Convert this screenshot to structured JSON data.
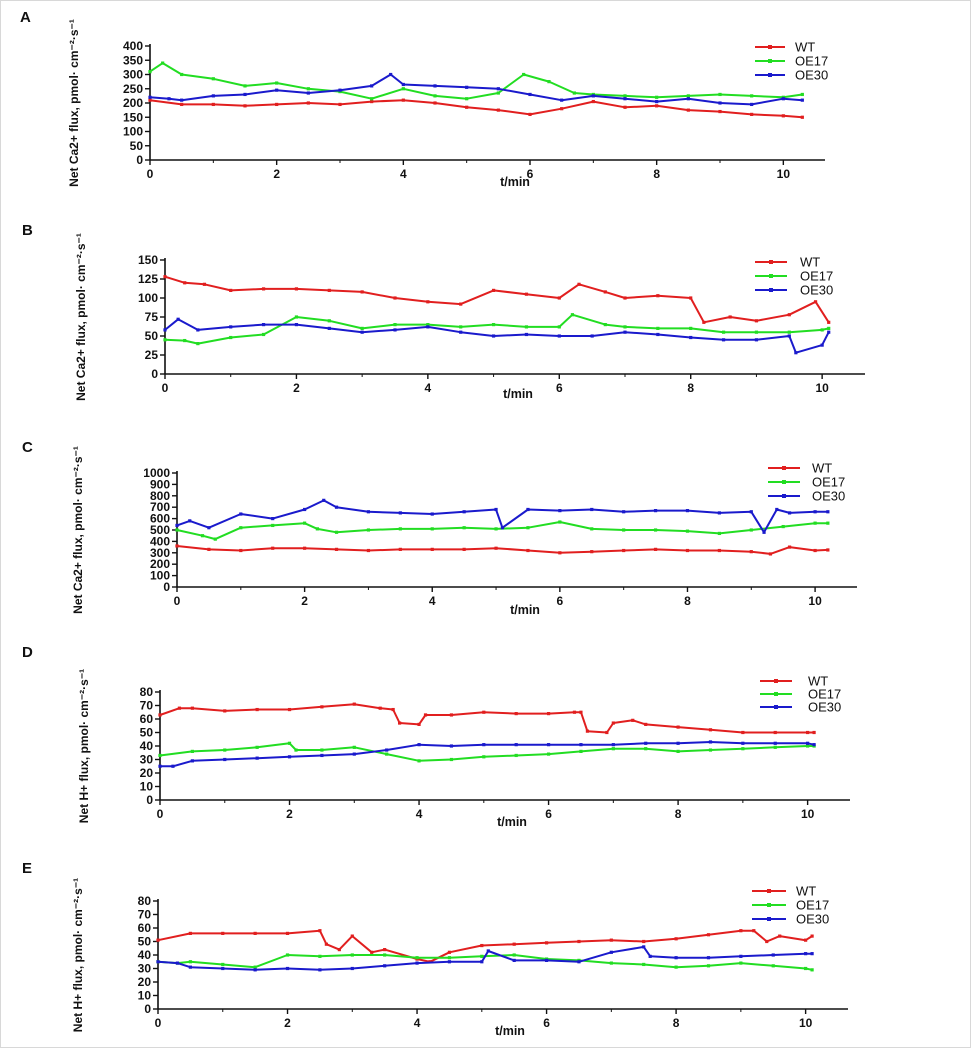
{
  "series_colors": {
    "WT": "#e11f1f",
    "OE17": "#22dd22",
    "OE30": "#1a1acc"
  },
  "chart_data": [
    {
      "panel": "A",
      "type": "line",
      "ylabel": "Net Ca2+ flux, pmol· cm⁻²·s⁻¹",
      "xlabel": "t/min",
      "xlim": [
        0,
        10.5
      ],
      "ylim": [
        0,
        400
      ],
      "xticks": [
        0,
        2,
        4,
        6,
        8,
        10
      ],
      "yticks": [
        0,
        50,
        100,
        150,
        200,
        250,
        300,
        350,
        400
      ],
      "legend": "top-right",
      "series": [
        {
          "name": "WT",
          "x": [
            0,
            0.5,
            1,
            1.5,
            2,
            2.5,
            3,
            3.5,
            4,
            4.5,
            5,
            5.5,
            6,
            6.5,
            7,
            7.5,
            8,
            8.5,
            9,
            9.5,
            10,
            10.3
          ],
          "y": [
            210,
            195,
            195,
            190,
            195,
            200,
            195,
            205,
            210,
            200,
            185,
            175,
            160,
            180,
            205,
            185,
            190,
            175,
            170,
            160,
            155,
            150
          ]
        },
        {
          "name": "OE17",
          "x": [
            0,
            0.2,
            0.5,
            1,
            1.5,
            2,
            2.5,
            3,
            3.5,
            4,
            4.5,
            5,
            5.5,
            5.9,
            6.3,
            6.7,
            7,
            7.5,
            8,
            8.5,
            9,
            9.5,
            10,
            10.3
          ],
          "y": [
            310,
            340,
            300,
            285,
            260,
            270,
            250,
            240,
            215,
            250,
            225,
            215,
            235,
            300,
            275,
            235,
            230,
            225,
            220,
            225,
            230,
            225,
            220,
            230
          ]
        },
        {
          "name": "OE30",
          "x": [
            0,
            0.3,
            0.5,
            1,
            1.5,
            2,
            2.5,
            3,
            3.5,
            3.8,
            4,
            4.5,
            5,
            5.5,
            6,
            6.5,
            7,
            7.5,
            8,
            8.5,
            9,
            9.5,
            10,
            10.3
          ],
          "y": [
            220,
            215,
            210,
            225,
            230,
            245,
            235,
            245,
            260,
            300,
            265,
            260,
            255,
            250,
            230,
            210,
            225,
            215,
            205,
            215,
            200,
            195,
            215,
            210
          ]
        }
      ]
    },
    {
      "panel": "B",
      "type": "line",
      "ylabel": "Net Ca2+ flux, pmol· cm⁻²·s⁻¹",
      "xlabel": "t/min",
      "xlim": [
        0,
        10.5
      ],
      "ylim": [
        0,
        150
      ],
      "xticks": [
        0,
        2,
        4,
        6,
        8,
        10
      ],
      "yticks": [
        0,
        25,
        50,
        75,
        100,
        125,
        150
      ],
      "legend": "top-right",
      "series": [
        {
          "name": "WT",
          "x": [
            0,
            0.3,
            0.6,
            1,
            1.5,
            2,
            2.5,
            3,
            3.5,
            4,
            4.5,
            5,
            5.5,
            6,
            6.3,
            6.7,
            7,
            7.5,
            8,
            8.2,
            8.6,
            9,
            9.5,
            9.9,
            10.1
          ],
          "y": [
            128,
            120,
            118,
            110,
            112,
            112,
            110,
            108,
            100,
            95,
            92,
            110,
            105,
            100,
            118,
            108,
            100,
            103,
            100,
            68,
            75,
            70,
            78,
            95,
            68
          ]
        },
        {
          "name": "OE17",
          "x": [
            0,
            0.3,
            0.5,
            1,
            1.5,
            2,
            2.5,
            3,
            3.5,
            4,
            4.5,
            5,
            5.5,
            6,
            6.2,
            6.7,
            7,
            7.5,
            8,
            8.5,
            9,
            9.5,
            10,
            10.1
          ],
          "y": [
            45,
            44,
            40,
            48,
            52,
            75,
            70,
            60,
            65,
            65,
            62,
            65,
            62,
            62,
            78,
            65,
            62,
            60,
            60,
            55,
            55,
            55,
            58,
            60
          ]
        },
        {
          "name": "OE30",
          "x": [
            0,
            0.2,
            0.5,
            1,
            1.5,
            2,
            2.5,
            3,
            3.5,
            4,
            4.5,
            5,
            5.5,
            6,
            6.5,
            7,
            7.5,
            8,
            8.5,
            9,
            9.5,
            9.6,
            10,
            10.1
          ],
          "y": [
            58,
            72,
            58,
            62,
            65,
            65,
            60,
            55,
            58,
            62,
            55,
            50,
            52,
            50,
            50,
            55,
            52,
            48,
            45,
            45,
            50,
            28,
            38,
            55
          ]
        }
      ]
    },
    {
      "panel": "C",
      "type": "line",
      "ylabel": "Net Ca2+ flux, pmol· cm⁻²·s⁻¹",
      "xlabel": "t/min",
      "xlim": [
        0,
        10.5
      ],
      "ylim": [
        0,
        1000
      ],
      "xticks": [
        0,
        2,
        4,
        6,
        8,
        10
      ],
      "yticks": [
        0,
        100,
        200,
        300,
        400,
        500,
        600,
        700,
        800,
        900,
        1000
      ],
      "legend": "top-right",
      "series": [
        {
          "name": "WT",
          "x": [
            0,
            0.5,
            1,
            1.5,
            2,
            2.5,
            3,
            3.5,
            4,
            4.5,
            5,
            5.5,
            6,
            6.5,
            7,
            7.5,
            8,
            8.5,
            9,
            9.3,
            9.6,
            10,
            10.2
          ],
          "y": [
            360,
            330,
            320,
            340,
            340,
            330,
            320,
            330,
            330,
            330,
            340,
            320,
            300,
            310,
            320,
            330,
            320,
            320,
            310,
            290,
            350,
            320,
            325
          ]
        },
        {
          "name": "OE17",
          "x": [
            0,
            0.4,
            0.6,
            1,
            1.5,
            2,
            2.2,
            2.5,
            3,
            3.5,
            4,
            4.5,
            5,
            5.5,
            6,
            6.5,
            7,
            7.5,
            8,
            8.5,
            9,
            9.5,
            10,
            10.2
          ],
          "y": [
            500,
            450,
            420,
            520,
            540,
            560,
            510,
            480,
            500,
            510,
            510,
            520,
            510,
            520,
            570,
            510,
            500,
            500,
            490,
            470,
            500,
            530,
            560,
            560
          ]
        },
        {
          "name": "OE30",
          "x": [
            0,
            0.2,
            0.5,
            1,
            1.5,
            2,
            2.3,
            2.5,
            3,
            3.5,
            4,
            4.5,
            5,
            5.1,
            5.5,
            6,
            6.5,
            7,
            7.5,
            8,
            8.5,
            9,
            9.2,
            9.4,
            9.6,
            10,
            10.2
          ],
          "y": [
            540,
            580,
            520,
            640,
            600,
            680,
            760,
            700,
            660,
            650,
            640,
            660,
            680,
            520,
            680,
            670,
            680,
            660,
            670,
            670,
            650,
            660,
            480,
            680,
            650,
            660,
            660
          ]
        }
      ]
    },
    {
      "panel": "D",
      "type": "line",
      "ylabel": "Net H+ flux, pmol· cm⁻²·s⁻¹",
      "xlabel": "t/min",
      "xlim": [
        0,
        10.5
      ],
      "ylim": [
        0,
        80
      ],
      "xticks": [
        0,
        2,
        4,
        6,
        8,
        10
      ],
      "yticks": [
        0,
        10,
        20,
        30,
        40,
        50,
        60,
        70,
        80
      ],
      "legend": "top-right",
      "series": [
        {
          "name": "WT",
          "x": [
            0,
            0.3,
            0.5,
            1,
            1.5,
            2,
            2.5,
            3,
            3.4,
            3.6,
            3.7,
            4,
            4.1,
            4.5,
            5,
            5.5,
            6,
            6.4,
            6.5,
            6.6,
            6.9,
            7,
            7.3,
            7.5,
            8,
            8.5,
            9,
            9.5,
            10,
            10.1
          ],
          "y": [
            63,
            68,
            68,
            66,
            67,
            67,
            69,
            71,
            68,
            67,
            57,
            56,
            63,
            63,
            65,
            64,
            64,
            65,
            65,
            51,
            50,
            57,
            59,
            56,
            54,
            52,
            50,
            50,
            50,
            50
          ]
        },
        {
          "name": "OE17",
          "x": [
            0,
            0.5,
            1,
            1.5,
            2,
            2.1,
            2.5,
            3,
            3.5,
            4,
            4.5,
            5,
            5.5,
            6,
            6.5,
            7,
            7.5,
            8,
            8.5,
            9,
            9.5,
            10,
            10.1
          ],
          "y": [
            33,
            36,
            37,
            39,
            42,
            37,
            37,
            39,
            34,
            29,
            30,
            32,
            33,
            34,
            36,
            38,
            38,
            36,
            37,
            38,
            39,
            40,
            40
          ]
        },
        {
          "name": "OE30",
          "x": [
            0,
            0.2,
            0.5,
            1,
            1.5,
            2,
            2.5,
            3,
            3.5,
            4,
            4.5,
            5,
            5.5,
            6,
            6.5,
            7,
            7.5,
            8,
            8.5,
            9,
            9.5,
            10,
            10.1
          ],
          "y": [
            25,
            25,
            29,
            30,
            31,
            32,
            33,
            34,
            37,
            41,
            40,
            41,
            41,
            41,
            41,
            41,
            42,
            42,
            43,
            42,
            42,
            42,
            41
          ]
        }
      ]
    },
    {
      "panel": "E",
      "type": "line",
      "ylabel": "Net H+ flux, pmol· cm⁻²·s⁻¹",
      "xlabel": "t/min",
      "xlim": [
        0,
        10.5
      ],
      "ylim": [
        0,
        80
      ],
      "xticks": [
        0,
        2,
        4,
        6,
        8,
        10
      ],
      "yticks": [
        0,
        10,
        20,
        30,
        40,
        50,
        60,
        70,
        80
      ],
      "legend": "top-right",
      "series": [
        {
          "name": "WT",
          "x": [
            0,
            0.5,
            1,
            1.5,
            2,
            2.5,
            2.6,
            2.8,
            3,
            3.3,
            3.5,
            4,
            4.2,
            4.5,
            5,
            5.5,
            6,
            6.5,
            7,
            7.5,
            8,
            8.5,
            9,
            9.2,
            9.4,
            9.6,
            10,
            10.1
          ],
          "y": [
            51,
            56,
            56,
            56,
            56,
            58,
            48,
            44,
            54,
            42,
            44,
            37,
            35,
            42,
            47,
            48,
            49,
            50,
            51,
            50,
            52,
            55,
            58,
            58,
            50,
            54,
            51,
            54
          ]
        },
        {
          "name": "OE17",
          "x": [
            0,
            0.3,
            0.5,
            1,
            1.5,
            2,
            2.5,
            3,
            3.5,
            4,
            4.5,
            5,
            5.5,
            6,
            6.5,
            7,
            7.5,
            8,
            8.5,
            9,
            9.5,
            10,
            10.1
          ],
          "y": [
            35,
            34,
            35,
            33,
            31,
            40,
            39,
            40,
            40,
            38,
            38,
            39,
            40,
            37,
            36,
            34,
            33,
            31,
            32,
            34,
            32,
            30,
            29
          ]
        },
        {
          "name": "OE30",
          "x": [
            0,
            0.3,
            0.5,
            1,
            1.5,
            2,
            2.5,
            3,
            3.5,
            4,
            4.5,
            5,
            5.1,
            5.5,
            6,
            6.5,
            7,
            7.5,
            7.6,
            8,
            8.5,
            9,
            9.5,
            10,
            10.1
          ],
          "y": [
            35,
            34,
            31,
            30,
            29,
            30,
            29,
            30,
            32,
            34,
            35,
            35,
            43,
            36,
            36,
            35,
            42,
            46,
            39,
            38,
            38,
            39,
            40,
            41,
            41
          ]
        }
      ]
    }
  ]
}
